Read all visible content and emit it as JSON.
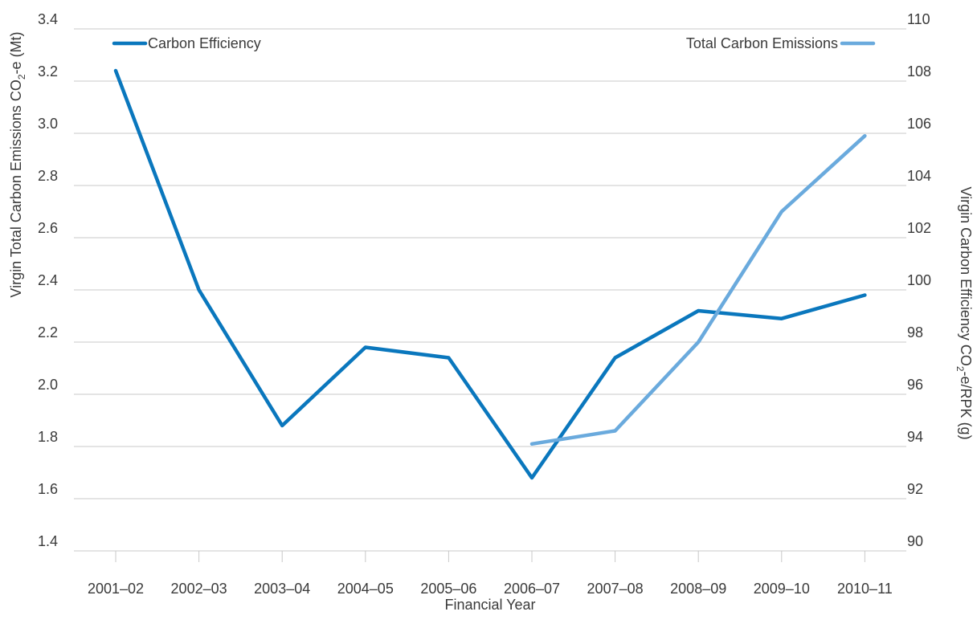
{
  "chart_data": {
    "type": "line",
    "categories": [
      "2001–02",
      "2002–03",
      "2003–04",
      "2004–05",
      "2005–06",
      "2006–07",
      "2007–08",
      "2008–09",
      "2009–10",
      "2010–11"
    ],
    "xlabel": "Financial Year",
    "ylabel_left": {
      "main": "Virgin Total Carbon Emissions CO",
      "sub": "2",
      "tail": "-e (Mt)"
    },
    "ylabel_right": {
      "main": "Virgin Carbon Efficiency  CO",
      "sub": "2",
      "tail": "-e/RPK (g)"
    },
    "y_left": {
      "lim": [
        1.4,
        3.4
      ],
      "ticks": [
        "1.4",
        "1.6",
        "1.8",
        "2.0",
        "2.2",
        "2.4",
        "2.6",
        "2.8",
        "3.0",
        "3.2",
        "3.4"
      ]
    },
    "y_right": {
      "lim": [
        90,
        110
      ],
      "ticks": [
        "90",
        "92",
        "94",
        "96",
        "98",
        "100",
        "102",
        "104",
        "106",
        "108",
        "110"
      ]
    },
    "grid": true,
    "series": [
      {
        "name": "Carbon Efficiency",
        "axis": "right",
        "color": "#0a77bd",
        "legend_position": "top-left",
        "values": [
          108.4,
          100.0,
          94.8,
          97.8,
          97.4,
          92.8,
          97.4,
          99.2,
          98.9,
          99.8
        ]
      },
      {
        "name": "Total Carbon Emissions",
        "axis": "left",
        "color": "#6aaadd",
        "legend_position": "top-right",
        "values": [
          null,
          null,
          null,
          null,
          null,
          1.81,
          1.86,
          2.2,
          2.7,
          2.99
        ]
      }
    ]
  }
}
